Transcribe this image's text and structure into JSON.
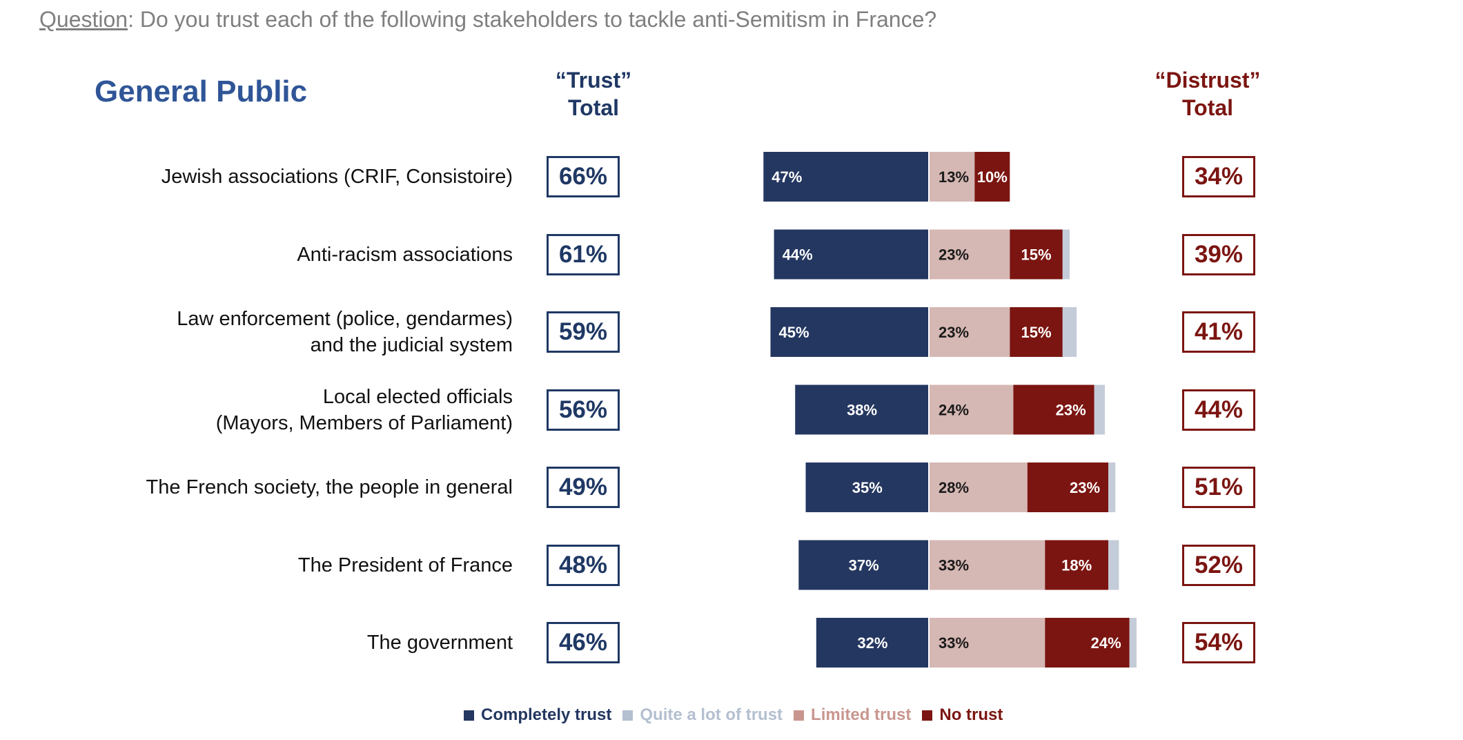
{
  "question": {
    "label": "Question",
    "text": ":  Do you trust each of the following stakeholders to tackle anti-Semitism in France?"
  },
  "group_title": "General Public",
  "headers": {
    "trust_line1": "“Trust”",
    "trust_line2": "Total",
    "distrust_line1": "“Distrust”",
    "distrust_line2": "Total"
  },
  "colors": {
    "completely_trust": "#243760",
    "quite_a_lot": "#c4ccd9",
    "limited": "#d5b7b3",
    "no_trust": "#7b1511",
    "trust_text": "#1f3864",
    "distrust_text": "#7b1511",
    "title": "#2f5597"
  },
  "chart_data": {
    "type": "bar",
    "orientation": "horizontal-diverging-stacked",
    "title": "Do you trust each of the following stakeholders to tackle anti-Semitism in France?",
    "categories": [
      [
        "Jewish associations (CRIF, Consistoire)"
      ],
      [
        "Anti-racism associations"
      ],
      [
        "Law enforcement (police, gendarmes)",
        "and the judicial system"
      ],
      [
        "Local elected officials",
        "(Mayors, Members of Parliament)"
      ],
      [
        "The French society, the people in general"
      ],
      [
        "The President of France"
      ],
      [
        "The government"
      ]
    ],
    "series": [
      {
        "name": "Completely trust",
        "side": "left",
        "values": [
          47,
          44,
          45,
          38,
          35,
          37,
          32
        ],
        "labels": [
          "47%",
          "44%",
          "45%",
          "38%",
          "35%",
          "37%",
          "32%"
        ]
      },
      {
        "name": "Quite a lot of trust",
        "side": "right-tail",
        "values": [
          0,
          2,
          4,
          3,
          2,
          3,
          2
        ],
        "labels": [
          "",
          "",
          "",
          "",
          "",
          "",
          ""
        ]
      },
      {
        "name": "Limited trust",
        "side": "right",
        "values": [
          13,
          23,
          23,
          24,
          28,
          33,
          33
        ],
        "labels": [
          "13%",
          "23%",
          "23%",
          "24%",
          "28%",
          "33%",
          "33%"
        ]
      },
      {
        "name": "No trust",
        "side": "right",
        "values": [
          10,
          15,
          15,
          23,
          23,
          18,
          24
        ],
        "labels": [
          "10%",
          "15%",
          "15%",
          "23%",
          "23%",
          "18%",
          "24%"
        ]
      }
    ],
    "trust_totals": [
      "66%",
      "61%",
      "59%",
      "56%",
      "49%",
      "48%",
      "46%"
    ],
    "distrust_totals": [
      "34%",
      "39%",
      "41%",
      "44%",
      "51%",
      "52%",
      "54%"
    ],
    "legend": [
      "Completely trust",
      "Quite a lot of trust",
      "Limited trust",
      "No trust"
    ]
  }
}
